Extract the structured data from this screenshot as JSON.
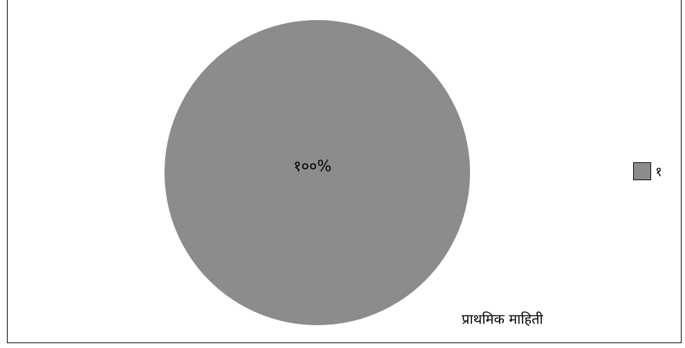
{
  "chart_data": {
    "type": "pie",
    "categories": [
      "१"
    ],
    "values": [
      100
    ],
    "data_labels": [
      "१००%"
    ],
    "colors": [
      "#8c8c8c"
    ],
    "legend": {
      "entries": [
        "१"
      ],
      "placement": "right"
    },
    "annotation": "प्राथमिक माहिती"
  }
}
